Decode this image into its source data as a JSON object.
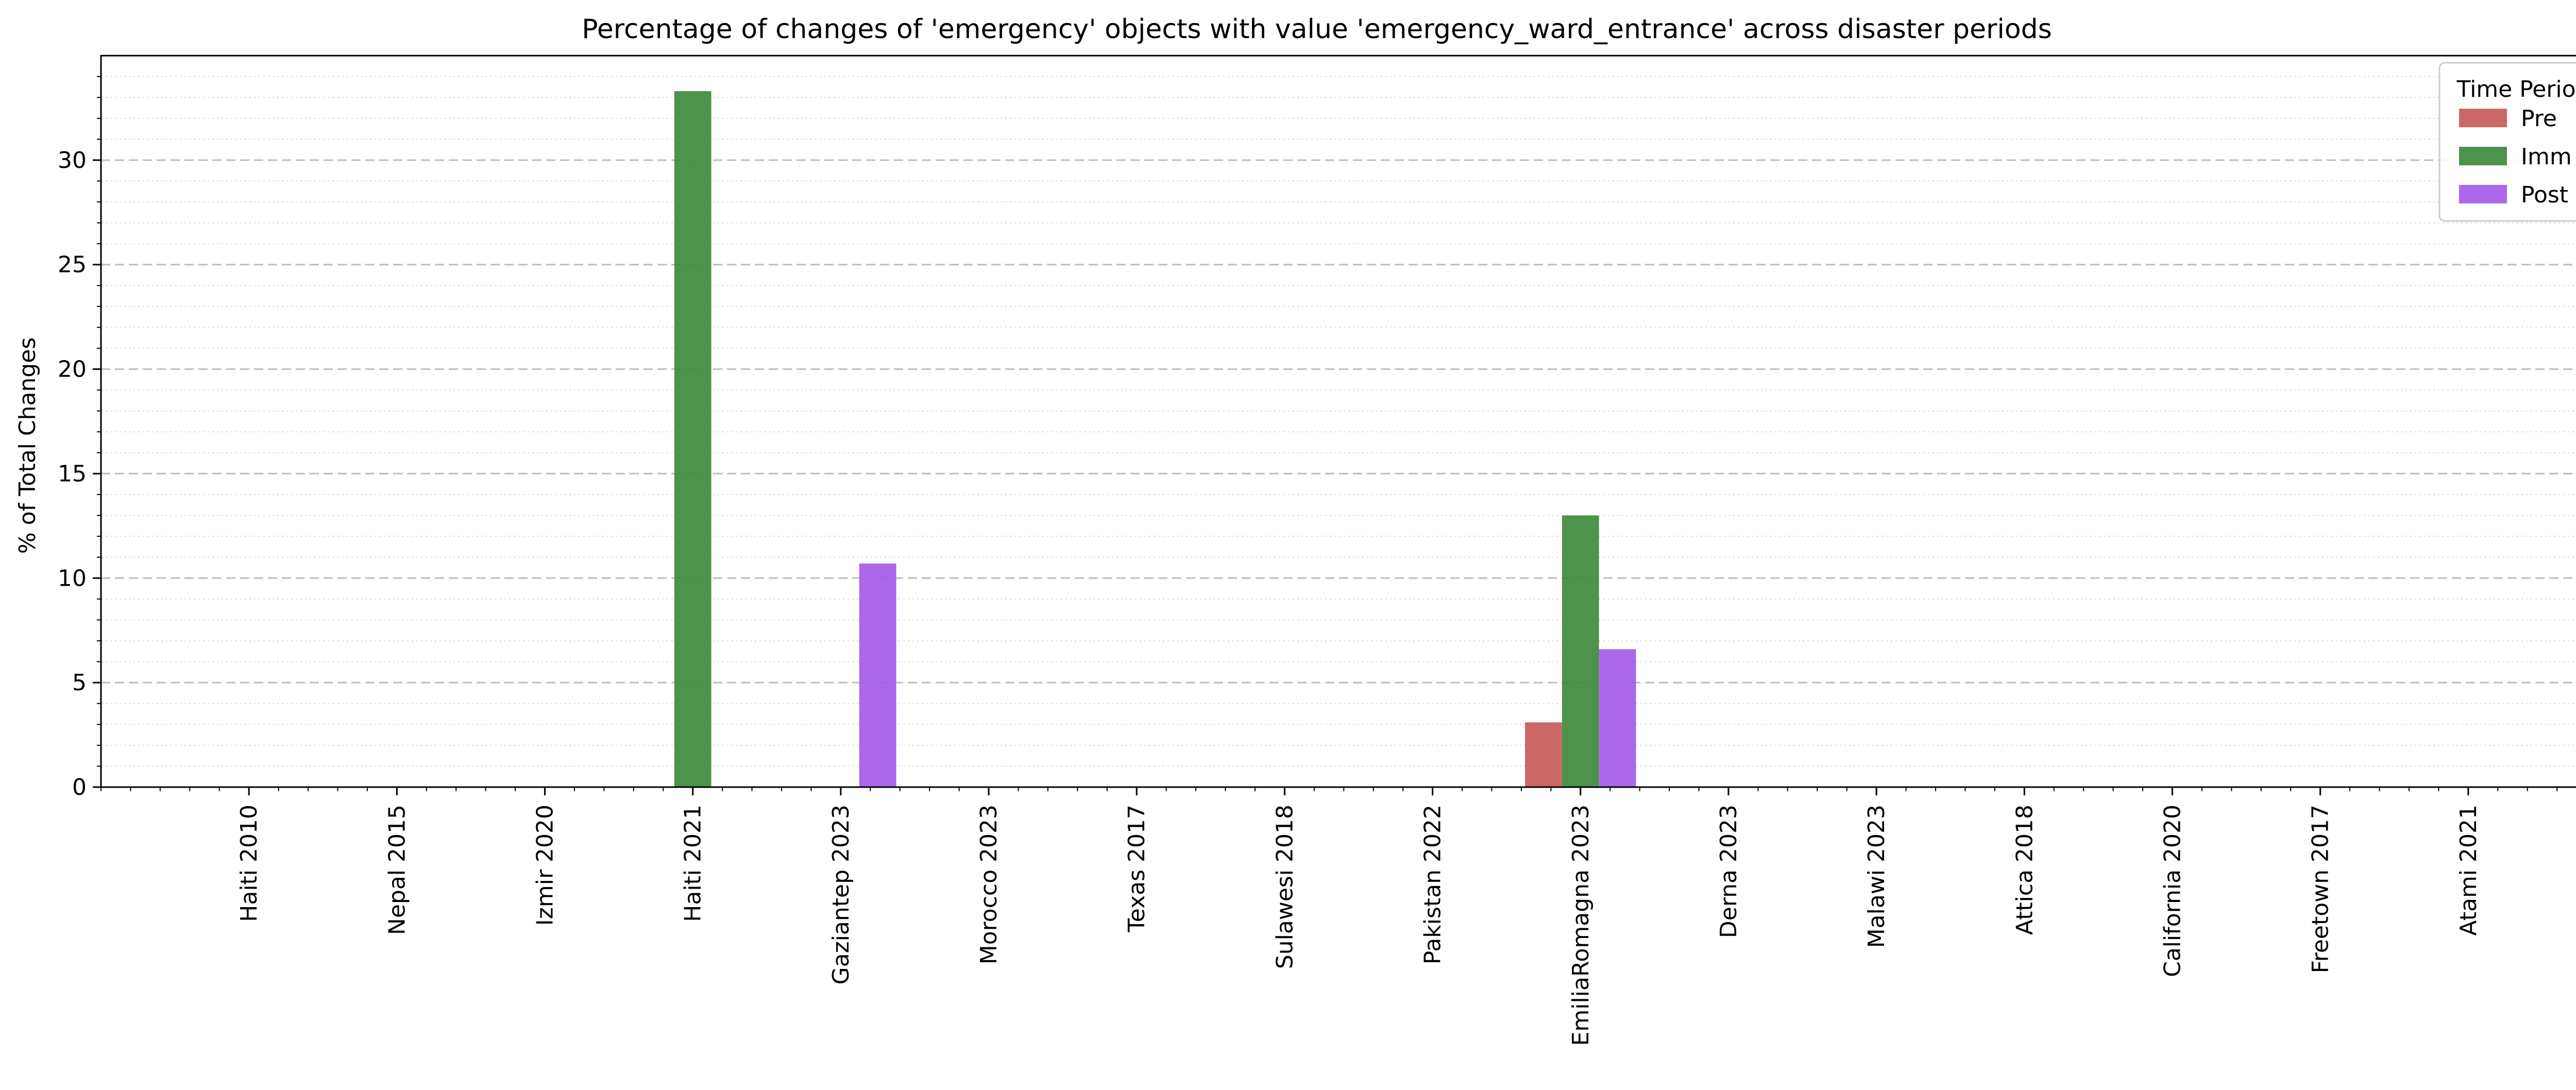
{
  "chart_data": {
    "type": "bar",
    "title": "Percentage of changes of 'emergency' objects with value 'emergency_ward_entrance' across disaster periods",
    "xlabel": "",
    "ylabel": "% of Total Changes",
    "ylim": [
      0,
      35
    ],
    "yticks": [
      "0",
      "5",
      "10",
      "15",
      "20",
      "25",
      "30"
    ],
    "grid": "horizontal dashed (major), dotted (minor)",
    "legend": {
      "title": "Time Period",
      "placement": "top-right"
    },
    "categories": [
      "Haiti 2010",
      "Nepal 2015",
      "Izmir 2020",
      "Haiti 2021",
      "Gaziantep 2023",
      "Morocco 2023",
      "Texas 2017",
      "Sulawesi 2018",
      "Pakistan 2022",
      "EmiliaRomagna 2023",
      "Derna 2023",
      "Malawi 2023",
      "Attica 2018",
      "California 2020",
      "Freetown 2017",
      "Atami 2021"
    ],
    "series": [
      {
        "name": "Pre",
        "color": "#c85b5b",
        "values": [
          0,
          0,
          0,
          0,
          0,
          0,
          0,
          0,
          0,
          3.1,
          0,
          0,
          0,
          0,
          0,
          0
        ]
      },
      {
        "name": "Imm",
        "color": "#3f8a3f",
        "values": [
          0,
          0,
          0,
          33.3,
          0,
          0,
          0,
          0,
          0,
          13.0,
          0,
          0,
          0,
          0,
          0,
          0
        ]
      },
      {
        "name": "Post",
        "color": "#a55ee8",
        "values": [
          0,
          0,
          0,
          0,
          10.7,
          0,
          0,
          0,
          0,
          6.6,
          0,
          0,
          0,
          0,
          0,
          0
        ]
      }
    ]
  }
}
